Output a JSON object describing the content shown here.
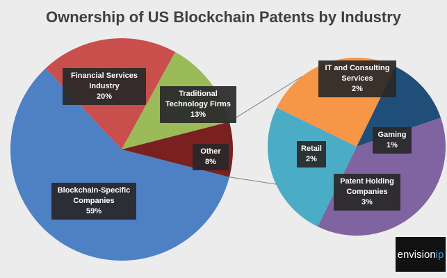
{
  "chart_data": {
    "type": "pie",
    "title": "Ownership of US Blockchain Patents by Industry",
    "main_pie": [
      {
        "label_lines": [
          "Blockchain-Specific",
          "Companies"
        ],
        "value": 59,
        "value_label": "59%",
        "color": "#4e80c4"
      },
      {
        "label_lines": [
          "Financial Services",
          "Industry"
        ],
        "value": 20,
        "value_label": "20%",
        "color": "#c84f4c"
      },
      {
        "label_lines": [
          "Traditional",
          "Technology Firms"
        ],
        "value": 13,
        "value_label": "13%",
        "color": "#9bbb59"
      },
      {
        "label_lines": [
          "Other"
        ],
        "value": 8,
        "value_label": "8%",
        "color": "#7b2020"
      }
    ],
    "sub_pie": [
      {
        "label_lines": [
          "IT and Consulting",
          "Services"
        ],
        "value": 2,
        "value_label": "2%",
        "color": "#f79646"
      },
      {
        "label_lines": [
          "Gaming"
        ],
        "value": 1,
        "value_label": "1%",
        "color": "#1f4e79"
      },
      {
        "label_lines": [
          "Patent Holding",
          "Companies"
        ],
        "value": 3,
        "value_label": "3%",
        "color": "#8064a2"
      },
      {
        "label_lines": [
          "Retail"
        ],
        "value": 2,
        "value_label": "2%",
        "color": "#4bacc6"
      }
    ],
    "breakout_of": "Other",
    "legend": "none"
  },
  "logo": {
    "text_main": "envision",
    "text_accent": "ip"
  },
  "colors": {
    "background": "#ececec",
    "label_box": "#282828",
    "connector": "#7f7f7f"
  }
}
